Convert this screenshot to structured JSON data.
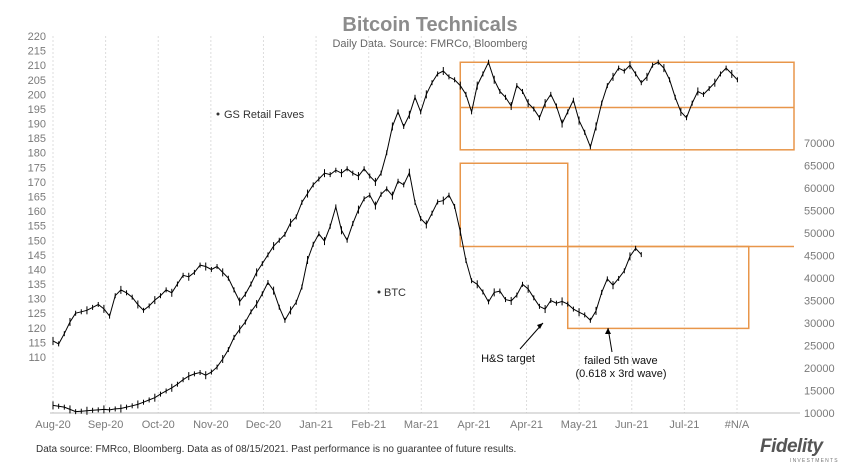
{
  "chart_data": {
    "type": "line",
    "title": "Bitcoin Technicals",
    "subtitle": "Daily Data. Source: FMRCo, Bloomberg",
    "x_labels": [
      "Aug-20",
      "Sep-20",
      "Oct-20",
      "Nov-20",
      "Dec-20",
      "Jan-21",
      "Feb-21",
      "Mar-21",
      "Apr-21",
      "Apr-21",
      "May-21",
      "Jun-21",
      "Jul-21",
      "#N/A"
    ],
    "y_left": {
      "min": 110,
      "max": 220,
      "ticks": [
        110,
        115,
        120,
        125,
        130,
        135,
        140,
        145,
        150,
        155,
        160,
        165,
        170,
        175,
        180,
        185,
        190,
        195,
        200,
        205,
        210,
        215,
        220
      ]
    },
    "y_right": {
      "min": 10000,
      "max": 70000,
      "ticks": [
        10000,
        15000,
        20000,
        25000,
        30000,
        35000,
        40000,
        45000,
        50000,
        55000,
        60000,
        65000,
        70000
      ]
    },
    "series": [
      {
        "name": "GS Retail Faves",
        "axis": "left",
        "points": [
          [
            0,
            115.5
          ],
          [
            2,
            114.5
          ],
          [
            4,
            118
          ],
          [
            6,
            122
          ],
          [
            8,
            125
          ],
          [
            10,
            125.5
          ],
          [
            12,
            126
          ],
          [
            14,
            127
          ],
          [
            16,
            128
          ],
          [
            18,
            126.5
          ],
          [
            20,
            124
          ],
          [
            22,
            131
          ],
          [
            24,
            133
          ],
          [
            26,
            132
          ],
          [
            28,
            130.5
          ],
          [
            30,
            128
          ],
          [
            32,
            126
          ],
          [
            34,
            127.5
          ],
          [
            36,
            129.5
          ],
          [
            38,
            131
          ],
          [
            40,
            133
          ],
          [
            42,
            132
          ],
          [
            44,
            135
          ],
          [
            46,
            138
          ],
          [
            48,
            137.5
          ],
          [
            50,
            139
          ],
          [
            52,
            141.5
          ],
          [
            54,
            141
          ],
          [
            56,
            140
          ],
          [
            58,
            141
          ],
          [
            60,
            139
          ],
          [
            62,
            137
          ],
          [
            64,
            133
          ],
          [
            66,
            129
          ],
          [
            68,
            131.5
          ],
          [
            70,
            135
          ],
          [
            72,
            139
          ],
          [
            74,
            142
          ],
          [
            76,
            145
          ],
          [
            78,
            148
          ],
          [
            80,
            150
          ],
          [
            82,
            152
          ],
          [
            84,
            156
          ],
          [
            86,
            158
          ],
          [
            88,
            163
          ],
          [
            90,
            166
          ],
          [
            92,
            169
          ],
          [
            94,
            171
          ],
          [
            96,
            173
          ],
          [
            98,
            172.5
          ],
          [
            100,
            174
          ],
          [
            102,
            173
          ],
          [
            104,
            174.5
          ],
          [
            106,
            173
          ],
          [
            108,
            172
          ],
          [
            110,
            174.5
          ],
          [
            112,
            172
          ],
          [
            114,
            170
          ],
          [
            116,
            173
          ],
          [
            118,
            180
          ],
          [
            120,
            189
          ],
          [
            122,
            194
          ],
          [
            124,
            189
          ],
          [
            126,
            193
          ],
          [
            128,
            199
          ],
          [
            130,
            194
          ],
          [
            132,
            200
          ],
          [
            134,
            204
          ],
          [
            136,
            207
          ],
          [
            138,
            208
          ],
          [
            140,
            206
          ],
          [
            142,
            205
          ],
          [
            144,
            203
          ],
          [
            146,
            200
          ],
          [
            148,
            194
          ],
          [
            150,
            203
          ],
          [
            152,
            207
          ],
          [
            154,
            211
          ],
          [
            156,
            205
          ],
          [
            158,
            201
          ],
          [
            160,
            199
          ],
          [
            162,
            196
          ],
          [
            164,
            203
          ],
          [
            166,
            201
          ],
          [
            168,
            197
          ],
          [
            170,
            195
          ],
          [
            172,
            192
          ],
          [
            174,
            197
          ],
          [
            176,
            200
          ],
          [
            178,
            196
          ],
          [
            180,
            190
          ],
          [
            182,
            194
          ],
          [
            184,
            198
          ],
          [
            186,
            191
          ],
          [
            188,
            187
          ],
          [
            190,
            182
          ],
          [
            192,
            189
          ],
          [
            194,
            197
          ],
          [
            196,
            203
          ],
          [
            198,
            206
          ],
          [
            200,
            209
          ],
          [
            202,
            208
          ],
          [
            204,
            210
          ],
          [
            206,
            207
          ],
          [
            208,
            204
          ],
          [
            210,
            206
          ],
          [
            212,
            210
          ],
          [
            214,
            211
          ],
          [
            216,
            209
          ],
          [
            218,
            205
          ],
          [
            220,
            199
          ],
          [
            222,
            194
          ],
          [
            224,
            192
          ],
          [
            226,
            197
          ],
          [
            228,
            201
          ],
          [
            230,
            200
          ],
          [
            232,
            202
          ],
          [
            234,
            204
          ],
          [
            236,
            207
          ],
          [
            238,
            209
          ],
          [
            240,
            207
          ],
          [
            242,
            205
          ]
        ]
      },
      {
        "name": "BTC",
        "axis": "right",
        "points": [
          [
            0,
            11700
          ],
          [
            2,
            11500
          ],
          [
            4,
            11300
          ],
          [
            6,
            10800
          ],
          [
            8,
            10300
          ],
          [
            10,
            10400
          ],
          [
            12,
            10500
          ],
          [
            14,
            10600
          ],
          [
            16,
            10700
          ],
          [
            18,
            10800
          ],
          [
            20,
            10700
          ],
          [
            22,
            10900
          ],
          [
            24,
            11000
          ],
          [
            26,
            11300
          ],
          [
            28,
            11600
          ],
          [
            30,
            11900
          ],
          [
            32,
            12400
          ],
          [
            34,
            12900
          ],
          [
            36,
            13400
          ],
          [
            38,
            14200
          ],
          [
            40,
            14900
          ],
          [
            42,
            15600
          ],
          [
            44,
            16400
          ],
          [
            46,
            17400
          ],
          [
            48,
            18200
          ],
          [
            50,
            18700
          ],
          [
            52,
            19000
          ],
          [
            54,
            18400
          ],
          [
            56,
            19100
          ],
          [
            58,
            20200
          ],
          [
            60,
            22000
          ],
          [
            62,
            24100
          ],
          [
            64,
            26800
          ],
          [
            66,
            28600
          ],
          [
            68,
            30200
          ],
          [
            70,
            32500
          ],
          [
            72,
            34200
          ],
          [
            74,
            36500
          ],
          [
            76,
            39000
          ],
          [
            78,
            37200
          ],
          [
            80,
            33500
          ],
          [
            82,
            30600
          ],
          [
            84,
            32800
          ],
          [
            86,
            34600
          ],
          [
            88,
            38000
          ],
          [
            90,
            44000
          ],
          [
            92,
            47500
          ],
          [
            94,
            49800
          ],
          [
            96,
            48200
          ],
          [
            98,
            51500
          ],
          [
            100,
            55800
          ],
          [
            102,
            50600
          ],
          [
            104,
            48400
          ],
          [
            106,
            52100
          ],
          [
            108,
            55200
          ],
          [
            110,
            57600
          ],
          [
            112,
            58400
          ],
          [
            114,
            56100
          ],
          [
            116,
            58600
          ],
          [
            118,
            59800
          ],
          [
            120,
            58300
          ],
          [
            122,
            61500
          ],
          [
            124,
            60700
          ],
          [
            126,
            63400
          ],
          [
            128,
            56800
          ],
          [
            130,
            53200
          ],
          [
            132,
            51900
          ],
          [
            134,
            54400
          ],
          [
            136,
            56900
          ],
          [
            138,
            57200
          ],
          [
            140,
            58400
          ],
          [
            142,
            55900
          ],
          [
            144,
            50300
          ],
          [
            146,
            43900
          ],
          [
            148,
            39400
          ],
          [
            150,
            38600
          ],
          [
            152,
            36900
          ],
          [
            154,
            34700
          ],
          [
            156,
            36800
          ],
          [
            158,
            37100
          ],
          [
            160,
            35200
          ],
          [
            162,
            34900
          ],
          [
            164,
            36200
          ],
          [
            166,
            38600
          ],
          [
            168,
            37600
          ],
          [
            170,
            35600
          ],
          [
            172,
            33700
          ],
          [
            174,
            33100
          ],
          [
            176,
            35000
          ],
          [
            178,
            34400
          ],
          [
            180,
            34800
          ],
          [
            182,
            34200
          ],
          [
            184,
            33100
          ],
          [
            186,
            32400
          ],
          [
            188,
            31800
          ],
          [
            190,
            30600
          ],
          [
            192,
            32700
          ],
          [
            194,
            36800
          ],
          [
            196,
            39800
          ],
          [
            198,
            38400
          ],
          [
            200,
            39900
          ],
          [
            202,
            41600
          ],
          [
            204,
            44800
          ],
          [
            206,
            46600
          ],
          [
            208,
            45200
          ]
        ]
      }
    ],
    "labels": [
      "GS Retail Faves",
      "BTC"
    ],
    "annotations": [
      "H&S target",
      "failed 5th wave\n(0.618 x 3rd wave)"
    ],
    "boxes": [
      {
        "axis": "left",
        "x_from": 144,
        "x_to": 262,
        "y_from": 181,
        "y_to": 211
      },
      {
        "axis": "right",
        "x_from": 144,
        "x_to": 182,
        "y_from": 47000,
        "y_to": 65500
      },
      {
        "axis": "right",
        "x_from": 182,
        "x_to": 246,
        "y_from": 28800,
        "y_to": 47000
      }
    ],
    "reference_lines": [
      {
        "axis": "left",
        "value": 195.5,
        "x_from": 144,
        "x_to": 262
      },
      {
        "axis": "right",
        "value": 47000,
        "x_from": 182,
        "x_to": 262
      }
    ],
    "colors": {
      "series": "#000000",
      "box": "#e8964a",
      "grid": "#dddddd"
    }
  },
  "footer": "Data source: FMRco, Bloomberg. Data as of 08/15/2021. Past performance is no guarantee of future results.",
  "brand": {
    "name": "Fidelity",
    "sub": "INVESTMENTS"
  }
}
